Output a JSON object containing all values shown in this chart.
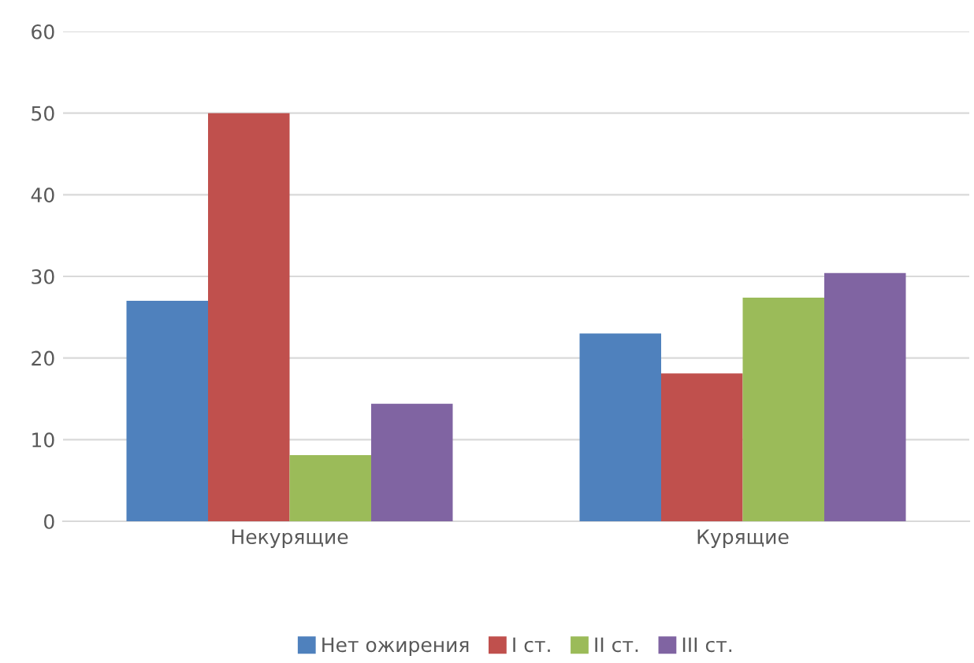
{
  "chart_data": {
    "type": "bar",
    "categories": [
      "Некурящие",
      "Курящие"
    ],
    "series": [
      {
        "name": "Нет ожирения",
        "color": "#4f81bd",
        "values": [
          27,
          23
        ]
      },
      {
        "name": "I ст.",
        "color": "#c0504d",
        "values": [
          50,
          18.1
        ]
      },
      {
        "name": "II ст.",
        "color": "#9bbb59",
        "values": [
          8.1,
          27.4
        ]
      },
      {
        "name": "III ст.",
        "color": "#8064a2",
        "values": [
          14.4,
          30.4
        ]
      }
    ],
    "ylim": [
      0,
      60
    ],
    "yticks": [
      0,
      10,
      20,
      30,
      40,
      50,
      60
    ],
    "grid": "y",
    "legend": "bottom"
  }
}
